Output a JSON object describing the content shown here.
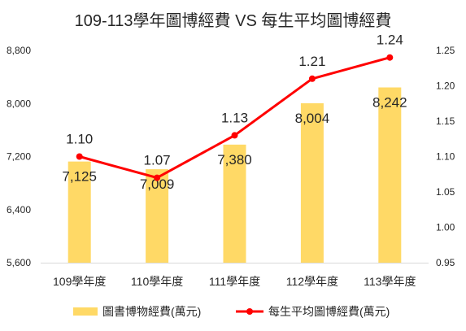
{
  "chart_data": {
    "type": "bar",
    "title": "109-113學年圖博經費 VS 每生平均圖博經費",
    "categories": [
      "109學年度",
      "110學年度",
      "111學年度",
      "112學年度",
      "113學年度"
    ],
    "series": [
      {
        "name": "圖書博物經費(萬元)",
        "type": "bar",
        "axis": "left",
        "color": "#FFD966",
        "values": [
          7125,
          7009,
          7380,
          8004,
          8242
        ],
        "labels": [
          "7,125",
          "7,009",
          "7,380",
          "8,004",
          "8,242"
        ]
      },
      {
        "name": "每生平均圖博經費(萬元)",
        "type": "line",
        "axis": "right",
        "color": "#FF0000",
        "values": [
          1.1,
          1.07,
          1.13,
          1.21,
          1.24
        ],
        "labels": [
          "1.10",
          "1.07",
          "1.13",
          "1.21",
          "1.24"
        ]
      }
    ],
    "y_left": {
      "min": 5600,
      "max": 8800,
      "ticks": [
        "5,600",
        "6,400",
        "7,200",
        "8,000",
        "8,800"
      ],
      "tick_values": [
        5600,
        6400,
        7200,
        8000,
        8800
      ]
    },
    "y_right": {
      "min": 0.95,
      "max": 1.25,
      "ticks": [
        "0.95",
        "1.00",
        "1.05",
        "1.10",
        "1.15",
        "1.20",
        "1.25"
      ],
      "tick_values": [
        0.95,
        1.0,
        1.05,
        1.1,
        1.15,
        1.2,
        1.25
      ]
    },
    "grid": false,
    "legend": "bottom"
  }
}
